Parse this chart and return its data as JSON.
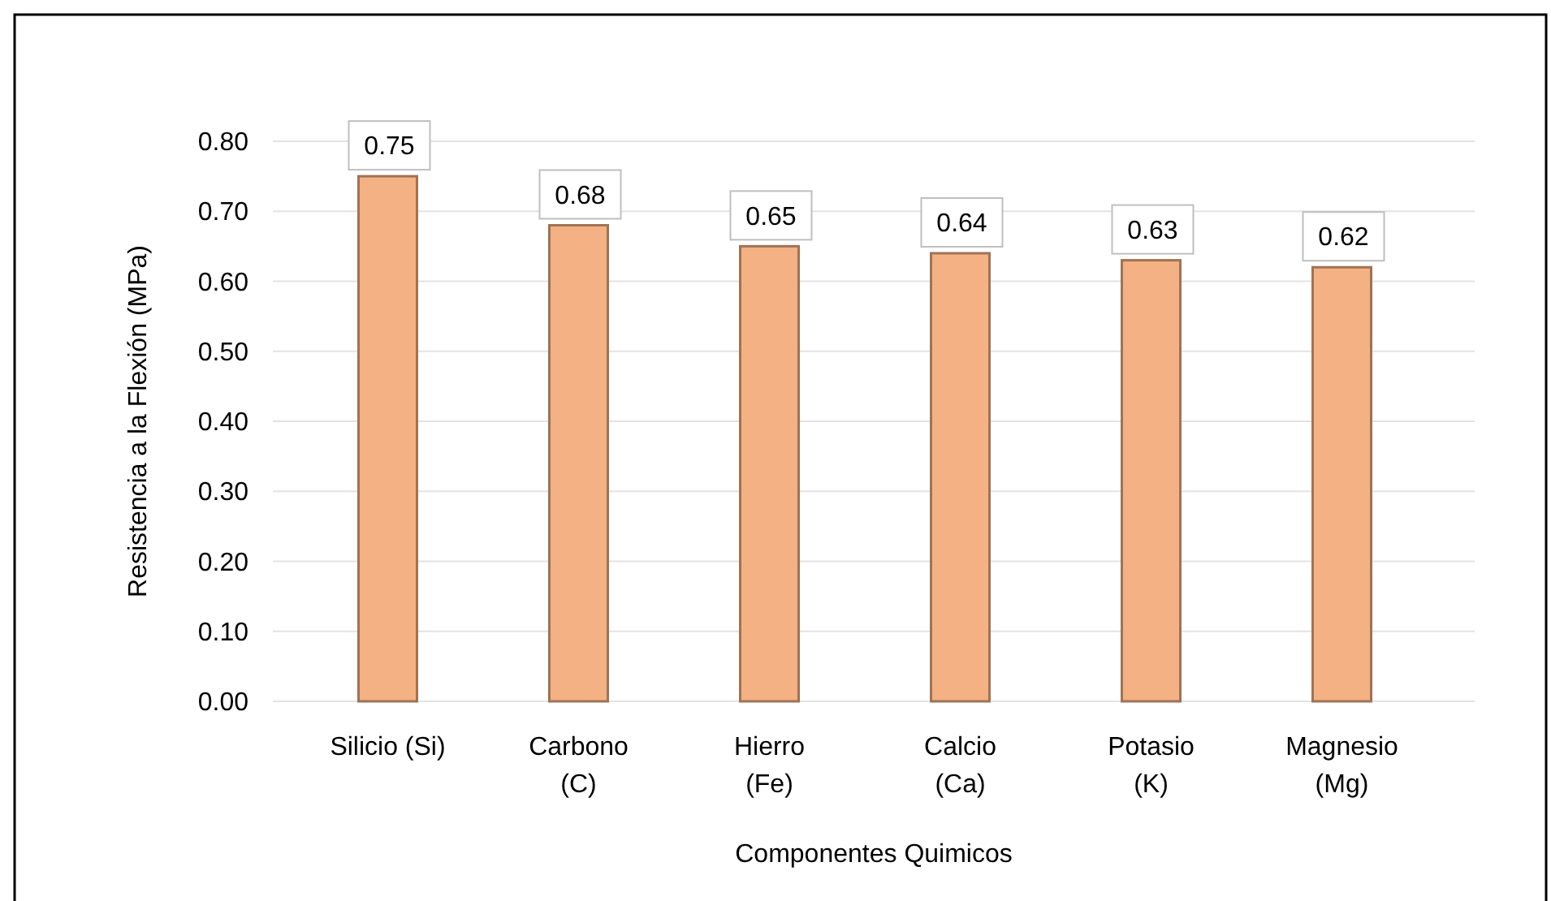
{
  "chart_data": {
    "type": "bar",
    "xlabel": "Componentes Quimicos",
    "ylabel": "Resistencia a la Flexión (MPa)",
    "categories": [
      "Silicio (Si)",
      "Carbono (C)",
      "Hierro (Fe)",
      "Calcio (Ca)",
      "Potasio (K)",
      "Magnesio (Mg)"
    ],
    "values": [
      0.75,
      0.68,
      0.65,
      0.64,
      0.63,
      0.62
    ],
    "color": "#f4b183",
    "ylim": [
      0,
      0.8
    ],
    "yticks": [
      {
        "value": 0,
        "label": "0.00"
      },
      {
        "value": 0.1,
        "label": "0.10"
      },
      {
        "value": 0.2,
        "label": "0.20"
      },
      {
        "value": 0.3,
        "label": "0.30"
      },
      {
        "value": 0.4,
        "label": "0.40"
      },
      {
        "value": 0.5,
        "label": "0.50"
      },
      {
        "value": 0.6,
        "label": "0.60"
      },
      {
        "value": 0.7,
        "label": "0.70"
      },
      {
        "value": 0.8,
        "label": "0.80"
      }
    ],
    "grid": true,
    "data_labels": true
  }
}
